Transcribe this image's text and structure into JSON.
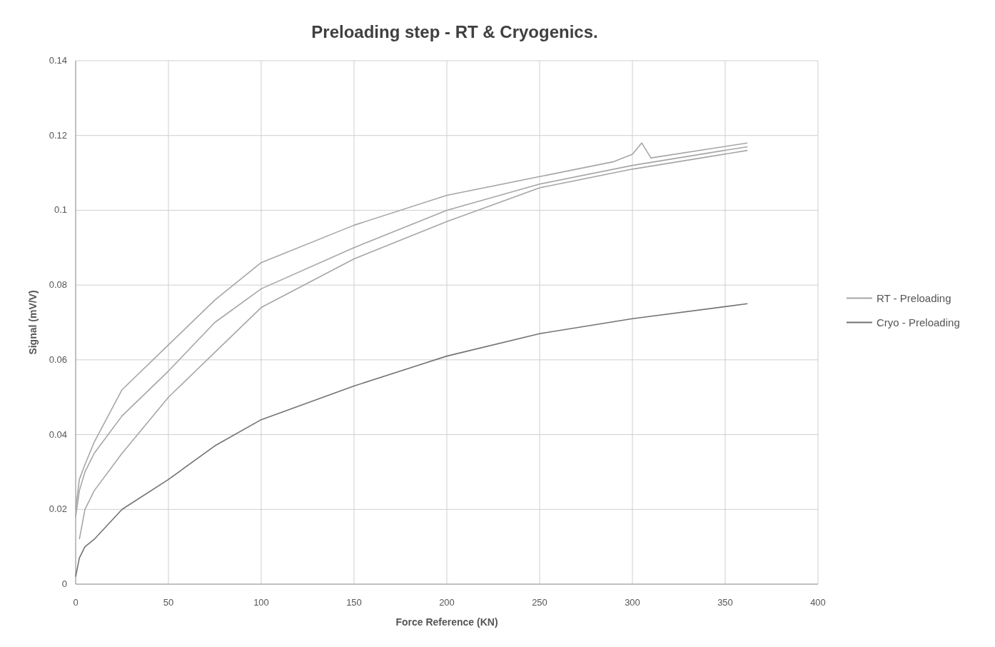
{
  "chart_data": {
    "type": "line",
    "title": "Preloading step - RT & Cryogenics.",
    "xlabel": "Force Reference (KN)",
    "ylabel": "Signal (mV/V)",
    "xlim": [
      0,
      400
    ],
    "xticks": [
      0,
      50,
      100,
      150,
      200,
      250,
      300,
      350,
      400
    ],
    "ylim": [
      0,
      0.14
    ],
    "yticks": [
      0,
      0.02,
      0.04,
      0.06,
      0.08,
      {
        "value": 0.1,
        "label": "0.1"
      },
      0.12,
      0.14
    ],
    "grid": true,
    "legend": "right",
    "line_style": "solid",
    "series": [
      {
        "name": "RT - Preloading",
        "color": "#a6a6a6",
        "x": [
          0,
          2,
          5,
          10,
          25,
          50,
          75,
          100,
          150,
          200,
          250,
          290,
          300,
          305,
          310,
          362
        ],
        "values": [
          0.02,
          0.028,
          0.032,
          0.038,
          0.052,
          0.064,
          0.076,
          0.086,
          0.096,
          0.104,
          0.109,
          0.113,
          0.115,
          0.118,
          0.114,
          0.118
        ]
      },
      {
        "color": "#a6a6a6",
        "x": [
          0,
          2,
          5,
          10,
          25,
          50,
          75,
          100,
          150,
          200,
          250,
          300,
          362
        ],
        "values": [
          0.018,
          0.025,
          0.03,
          0.035,
          0.045,
          0.057,
          0.07,
          0.079,
          0.09,
          0.1,
          0.107,
          0.112,
          0.117
        ]
      },
      {
        "color": "#a6a6a6",
        "x": [
          2,
          5,
          10,
          25,
          50,
          75,
          100,
          150,
          200,
          250,
          300,
          362
        ],
        "values": [
          0.012,
          0.02,
          0.025,
          0.035,
          0.05,
          0.062,
          0.074,
          0.087,
          0.097,
          0.106,
          0.111,
          0.116
        ]
      },
      {
        "name": "Cryo - Preloading",
        "color": "#737373",
        "x": [
          0,
          2,
          5,
          10,
          25,
          50,
          75,
          100,
          150,
          200,
          250,
          300,
          362
        ],
        "values": [
          0.002,
          0.007,
          0.01,
          0.012,
          0.02,
          0.028,
          0.037,
          0.044,
          0.053,
          0.061,
          0.067,
          0.071,
          0.075
        ]
      }
    ]
  }
}
